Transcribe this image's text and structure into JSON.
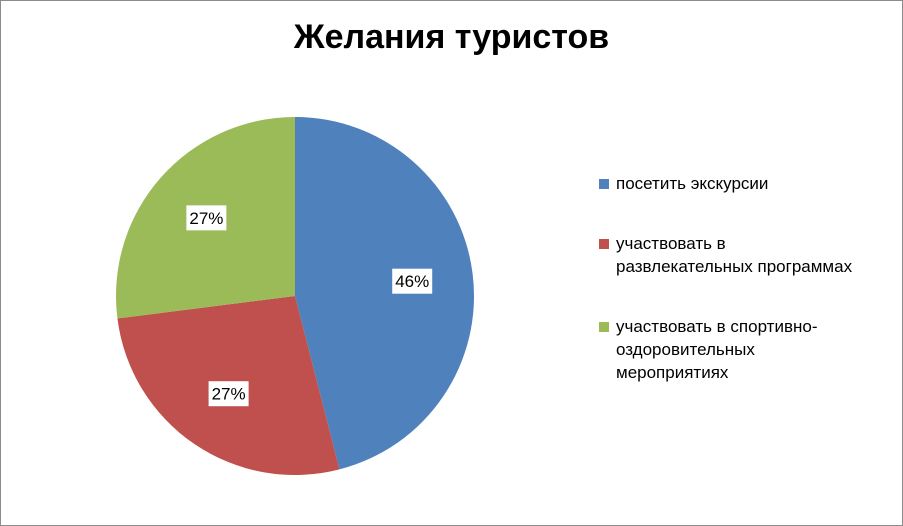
{
  "chart_data": {
    "type": "pie",
    "title": "Желания туристов",
    "categories": [
      "посетить экскурсии",
      "участвовать в развлекательных программах",
      "участвовать в спортивно-оздоровительных мероприятиях"
    ],
    "values": [
      46,
      27,
      27
    ],
    "data_labels": [
      "46%",
      "27%",
      "27%"
    ],
    "colors": [
      "#4f81bd",
      "#c0504d",
      "#9bbb59"
    ],
    "legend": [
      {
        "lines": [
          "посетить экскурсии"
        ]
      },
      {
        "lines": [
          "участвовать в",
          "развлекательных программах"
        ]
      },
      {
        "lines": [
          "участвовать в спортивно-",
          "оздоровительных",
          "мероприятиях"
        ]
      }
    ],
    "legend_position": "right",
    "start_angle_deg": 0,
    "direction": "clockwise"
  }
}
